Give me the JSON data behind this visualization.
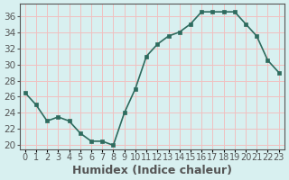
{
  "x": [
    0,
    1,
    2,
    3,
    4,
    5,
    6,
    7,
    8,
    9,
    10,
    11,
    12,
    13,
    14,
    15,
    16,
    17,
    18,
    19,
    20,
    21,
    22,
    23
  ],
  "y": [
    26.5,
    25.0,
    23.0,
    23.5,
    23.0,
    21.5,
    20.5,
    20.5,
    20.0,
    24.0,
    27.0,
    31.0,
    32.5,
    33.5,
    34.0,
    35.0,
    36.5,
    36.5,
    36.5,
    36.5,
    35.0,
    33.5,
    30.5,
    29.0
  ],
  "line_color": "#2e6b5e",
  "marker_color": "#2e6b5e",
  "bg_color": "#d8f0f0",
  "grid_color": "#f0c0c0",
  "axis_color": "#555555",
  "xlabel": "Humidex (Indice chaleur)",
  "ylabel": "",
  "ylim": [
    19.5,
    37.5
  ],
  "yticks": [
    20,
    22,
    24,
    26,
    28,
    30,
    32,
    34,
    36
  ],
  "xtick_labels": [
    "0",
    "1",
    "2",
    "3",
    "4",
    "5",
    "6",
    "7",
    "8",
    "9",
    "10",
    "11",
    "12",
    "13",
    "14",
    "15",
    "16",
    "17",
    "18",
    "19",
    "20",
    "21",
    "22",
    "23"
  ],
  "xlabel_fontsize": 9,
  "tick_fontsize": 7.5,
  "line_width": 1.2,
  "marker_size": 3
}
